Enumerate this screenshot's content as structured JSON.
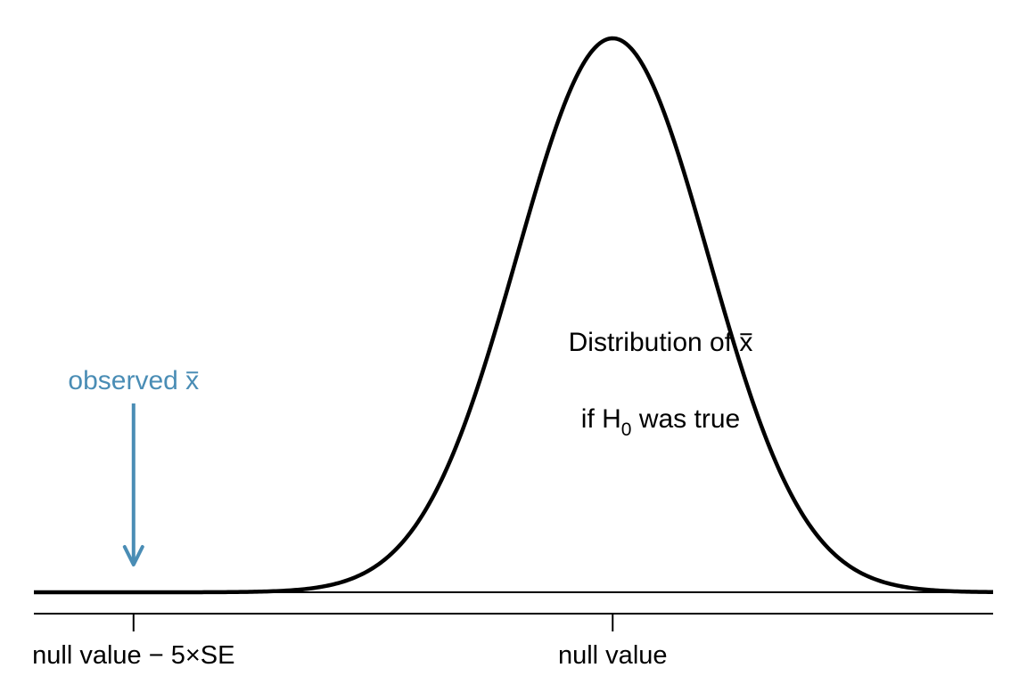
{
  "chart_data": {
    "type": "line",
    "description_type": "normal-density-curve",
    "xlim": [
      -6.04,
      3.97
    ],
    "x_ticks": [
      {
        "value": -5,
        "label": "null value − 5×SE"
      },
      {
        "value": 0,
        "label": "null value"
      }
    ],
    "curve": {
      "distribution": "normal",
      "mean": 0,
      "sd": 1
    },
    "annotations": {
      "distribution_label_line1_prefix": "Distribution of ",
      "distribution_label_line1_symbol": "x",
      "distribution_label_line2_prefix": "if H",
      "distribution_label_line2_subscript": "0",
      "distribution_label_line2_suffix": " was true",
      "observed_label_prefix": "observed ",
      "observed_label_symbol": "x",
      "observed_value": -5
    },
    "colors": {
      "curve": "#000000",
      "axis": "#000000",
      "observed": "#4a8db5"
    },
    "grid": false,
    "legend": "none"
  }
}
